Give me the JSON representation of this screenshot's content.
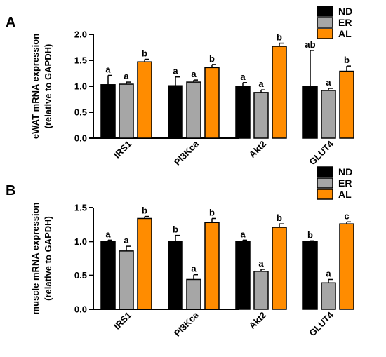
{
  "colors": {
    "ND": "#000000",
    "ER": "#a6a6a6",
    "AL": "#ff8c00"
  },
  "chart_data": [
    {
      "type": "bar",
      "panel_label": "A",
      "ylabel_line1": "eWAT mRNA expression",
      "ylabel_line2": "(relative to GAPDH)",
      "xlabel": "",
      "categories": [
        "IRS1",
        "PI3Kca",
        "Akt2",
        "GLUT4"
      ],
      "ylim": [
        0,
        2.0
      ],
      "yticks": [
        "0.0",
        "0.5",
        "1.0",
        "1.5",
        "2.0"
      ],
      "grid": false,
      "legend_position": "top-right",
      "series": [
        {
          "name": "ND",
          "values": [
            1.03,
            1.01,
            1.0,
            1.0
          ],
          "errors": [
            0.18,
            0.17,
            0.07,
            0.69
          ],
          "labels": [
            "a",
            "a",
            "a",
            "ab"
          ]
        },
        {
          "name": "ER",
          "values": [
            1.04,
            1.08,
            0.88,
            0.92
          ],
          "errors": [
            0.04,
            0.04,
            0.05,
            0.04
          ],
          "labels": [
            "a",
            "a",
            "a",
            "a"
          ]
        },
        {
          "name": "AL",
          "values": [
            1.47,
            1.36,
            1.77,
            1.29
          ],
          "errors": [
            0.05,
            0.06,
            0.06,
            0.1
          ],
          "labels": [
            "b",
            "b",
            "b",
            "b"
          ]
        }
      ]
    },
    {
      "type": "bar",
      "panel_label": "B",
      "ylabel_line1": "muscle mRNA expression",
      "ylabel_line2": "(relative to GAPDH)",
      "xlabel": "",
      "categories": [
        "IRS1",
        "PI3Kca",
        "Akt2",
        "GLUT4"
      ],
      "ylim": [
        0,
        1.5
      ],
      "yticks": [
        "0.0",
        "0.5",
        "1.0",
        "1.5"
      ],
      "grid": false,
      "legend_position": "top-right",
      "series": [
        {
          "name": "ND",
          "values": [
            1.0,
            1.0,
            1.0,
            1.0
          ],
          "errors": [
            0.02,
            0.09,
            0.02,
            0.01
          ],
          "labels": [
            "a",
            "b",
            "a",
            "b"
          ]
        },
        {
          "name": "ER",
          "values": [
            0.86,
            0.44,
            0.56,
            0.39
          ],
          "errors": [
            0.07,
            0.07,
            0.03,
            0.05
          ],
          "labels": [
            "a",
            "a",
            "a",
            "a"
          ]
        },
        {
          "name": "AL",
          "values": [
            1.34,
            1.28,
            1.21,
            1.26
          ],
          "errors": [
            0.03,
            0.06,
            0.05,
            0.03
          ],
          "labels": [
            "b",
            "b",
            "b",
            "c"
          ]
        }
      ]
    }
  ]
}
